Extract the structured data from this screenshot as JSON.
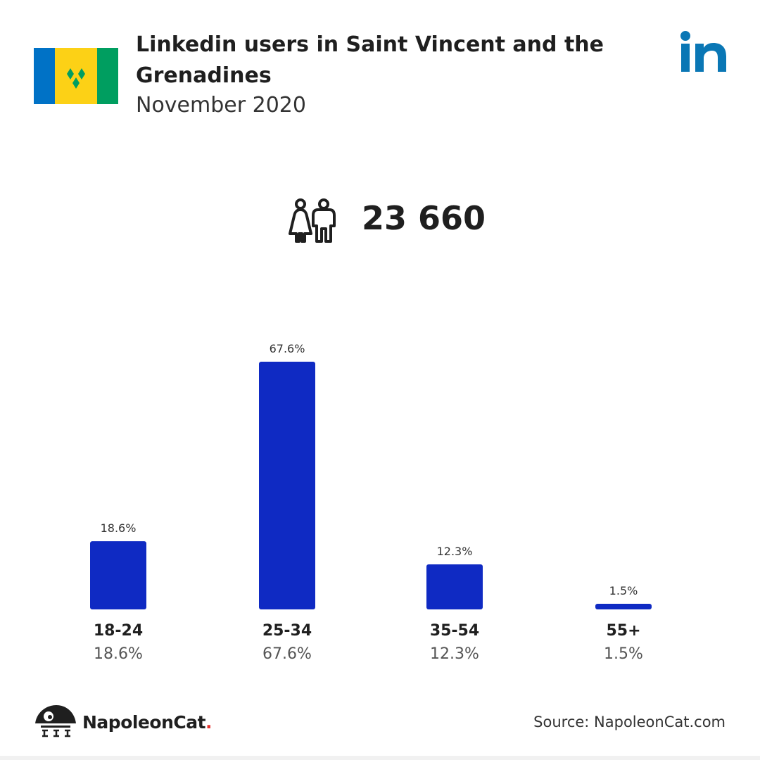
{
  "header": {
    "title": "Linkedin users in Saint Vincent and the Grenadines",
    "subtitle": "November 2020"
  },
  "summary": {
    "total_users": "23 660",
    "icon": "users-icon"
  },
  "colors": {
    "bar": "#0f2ac3",
    "linkedin_brand": "#0a77b5",
    "flag_blue": "#0072c6",
    "flag_yellow": "#fcd116",
    "flag_green": "#009e60"
  },
  "chart_data": {
    "type": "bar",
    "categories": [
      "18-24",
      "25-34",
      "35-54",
      "55+"
    ],
    "values": [
      18.6,
      67.6,
      12.3,
      1.5
    ],
    "value_labels": [
      "18.6%",
      "67.6%",
      "12.3%",
      "1.5%"
    ],
    "unit": "%",
    "ylim": [
      0,
      67.6
    ],
    "grid": false,
    "legend": "none"
  },
  "footer": {
    "brand_name": "NapoleonCat",
    "brand_dot": ".",
    "source": "Source: NapoleonCat.com"
  }
}
